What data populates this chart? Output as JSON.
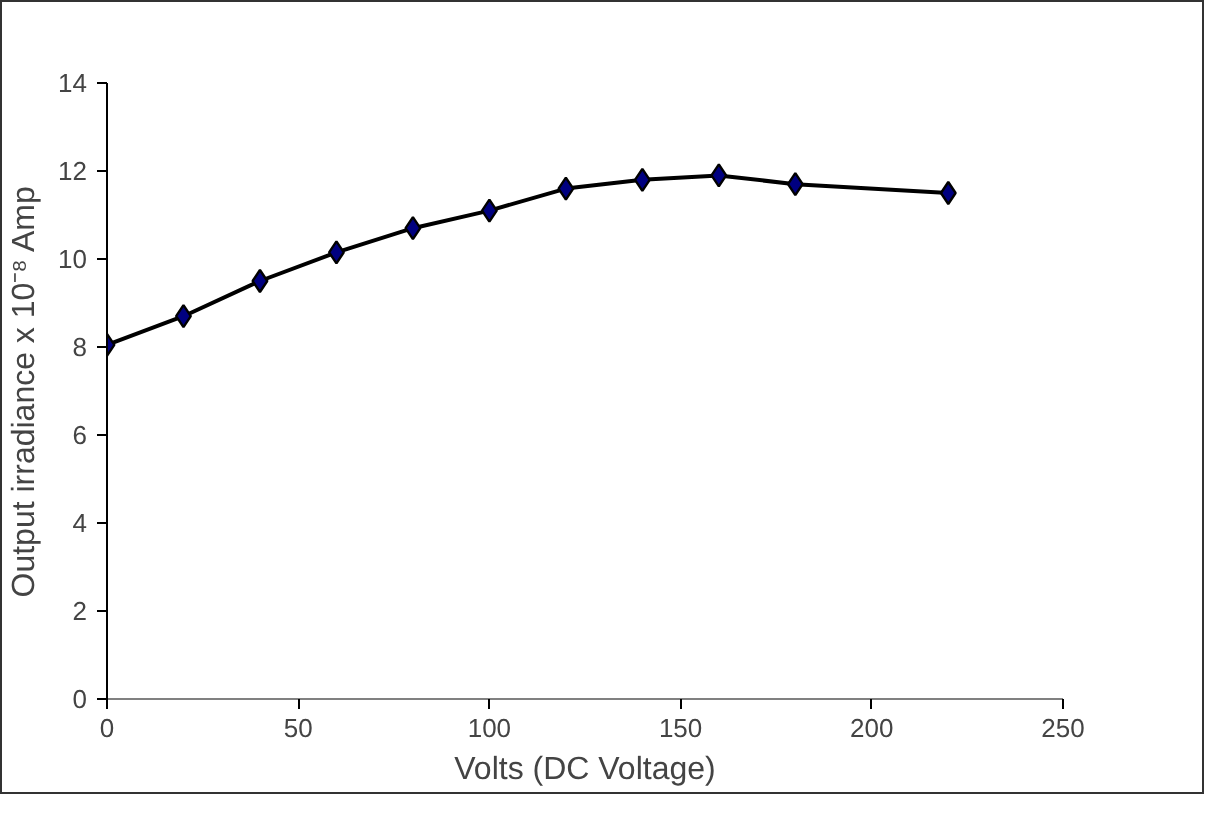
{
  "chart_data": {
    "type": "line",
    "xlabel": "Volts (DC Voltage)",
    "ylabel": "Output irradiance x 10⁻⁸ Amp",
    "x": [
      0,
      20,
      40,
      60,
      80,
      100,
      120,
      140,
      160,
      180,
      220
    ],
    "series": [
      {
        "color": "#000080",
        "values": [
          8.05,
          8.7,
          9.5,
          10.15,
          10.7,
          11.1,
          11.6,
          11.8,
          11.9,
          11.7,
          11.5
        ]
      }
    ],
    "xlim": [
      0,
      250
    ],
    "xticks": [
      0,
      50,
      100,
      150,
      200,
      250
    ],
    "ylim": [
      0,
      14
    ],
    "yticks": [
      0,
      2,
      4,
      6,
      8,
      10,
      12,
      14
    ],
    "grid": false,
    "marker": "diamond",
    "line_style": "solid"
  }
}
